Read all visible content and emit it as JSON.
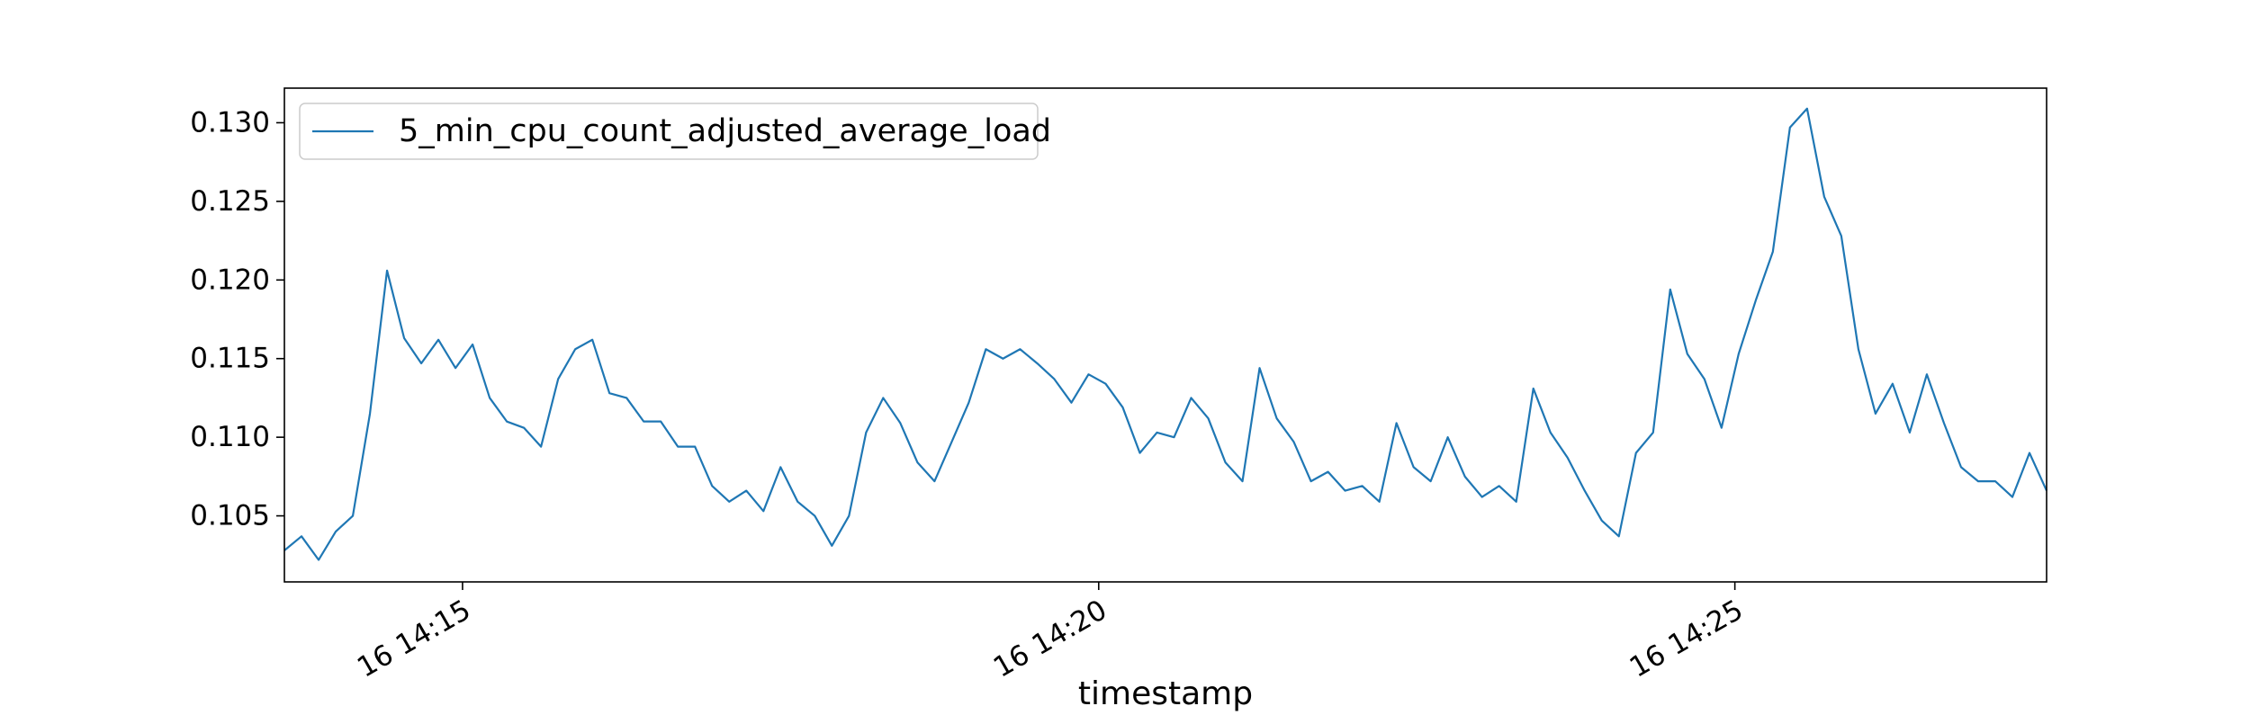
{
  "chart_data": {
    "type": "line",
    "title": "",
    "xlabel": "timestamp",
    "ylabel": "",
    "x_tick_labels": [
      "16 14:15",
      "16 14:20",
      "16 14:25"
    ],
    "x_tick_minutes": [
      15,
      20,
      25
    ],
    "x_range_minutes": [
      13.6,
      27.45
    ],
    "y_tick_labels": [
      "0.105",
      "0.110",
      "0.115",
      "0.120",
      "0.125",
      "0.130"
    ],
    "ylim": [
      0.1008,
      0.1322
    ],
    "grid": false,
    "legend_position": "upper left",
    "series": [
      {
        "name": "5_min_cpu_count_adjusted_average_load",
        "color": "#1f77b4",
        "values": [
          0.1028,
          0.1037,
          0.1022,
          0.104,
          0.105,
          0.1115,
          0.1206,
          0.1163,
          0.1147,
          0.1162,
          0.1144,
          0.1159,
          0.1125,
          0.111,
          0.1106,
          0.1094,
          0.1137,
          0.1156,
          0.1162,
          0.1128,
          0.1125,
          0.111,
          0.111,
          0.1094,
          0.1094,
          0.1069,
          0.1059,
          0.1066,
          0.1053,
          0.1081,
          0.1059,
          0.105,
          0.1031,
          0.105,
          0.1103,
          0.1125,
          0.1109,
          0.1084,
          0.1072,
          0.1097,
          0.1122,
          0.1156,
          0.115,
          0.1156,
          0.1147,
          0.1137,
          0.1122,
          0.114,
          0.1134,
          0.1119,
          0.109,
          0.1103,
          0.11,
          0.1125,
          0.1112,
          0.1084,
          0.1072,
          0.1144,
          0.1112,
          0.1097,
          0.1072,
          0.1078,
          0.1066,
          0.1069,
          0.1059,
          0.1109,
          0.1081,
          0.1072,
          0.11,
          0.1075,
          0.1062,
          0.1069,
          0.1059,
          0.1131,
          0.1103,
          0.1087,
          0.1066,
          0.1047,
          0.1037,
          0.109,
          0.1103,
          0.1194,
          0.1153,
          0.1137,
          0.1106,
          0.1153,
          0.1187,
          0.1218,
          0.1297,
          0.1309,
          0.1253,
          0.1228,
          0.1156,
          0.1115,
          0.1134,
          0.1103,
          0.114,
          0.1109,
          0.1081,
          0.1072,
          0.1072,
          0.1062,
          0.109,
          0.1066
        ]
      }
    ]
  }
}
